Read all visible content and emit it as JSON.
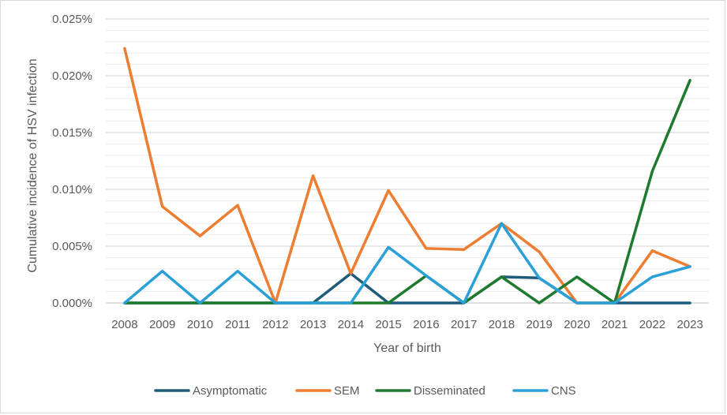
{
  "chart_data": {
    "type": "line",
    "xlabel": "Year of birth",
    "ylabel": "Cumulative incidence of HSV infection",
    "ylim": [
      0,
      0.025
    ],
    "y_ticks": [
      "0.000%",
      "0.005%",
      "0.010%",
      "0.015%",
      "0.020%",
      "0.025%"
    ],
    "y_tick_values": [
      0,
      0.005,
      0.01,
      0.015,
      0.02,
      0.025
    ],
    "minor_grid_step": 0.001,
    "grid": true,
    "legend_position": "bottom",
    "categories": [
      "2008",
      "2009",
      "2010",
      "2011",
      "2012",
      "2013",
      "2014",
      "2015",
      "2016",
      "2017",
      "2018",
      "2019",
      "2020",
      "2021",
      "2022",
      "2023"
    ],
    "series": [
      {
        "name": "Asymptomatic",
        "color": "#1f5c7a",
        "values": [
          0,
          0,
          0,
          0,
          0,
          0,
          0.0026,
          0,
          0,
          0,
          0.0023,
          0.0022,
          0,
          0,
          0,
          0
        ]
      },
      {
        "name": "SEM",
        "color": "#ed7d31",
        "values": [
          0.0224,
          0.0085,
          0.0059,
          0.0086,
          0,
          0.0112,
          0.0026,
          0.0099,
          0.0048,
          0.0047,
          0.007,
          0.0045,
          0,
          0,
          0.0046,
          0.0032
        ]
      },
      {
        "name": "Disseminated",
        "color": "#1e7a2e",
        "values": [
          0,
          0,
          0,
          0,
          0,
          0,
          0,
          0,
          0.0024,
          0,
          0.0023,
          0,
          0.0023,
          0,
          0.0116,
          0.0196
        ]
      },
      {
        "name": "CNS",
        "color": "#2aa0d8",
        "values": [
          0,
          0.0028,
          0,
          0.0028,
          0,
          0,
          0,
          0.0049,
          0.0024,
          0,
          0.007,
          0.0022,
          0,
          0,
          0.0023,
          0.0032
        ]
      }
    ]
  }
}
